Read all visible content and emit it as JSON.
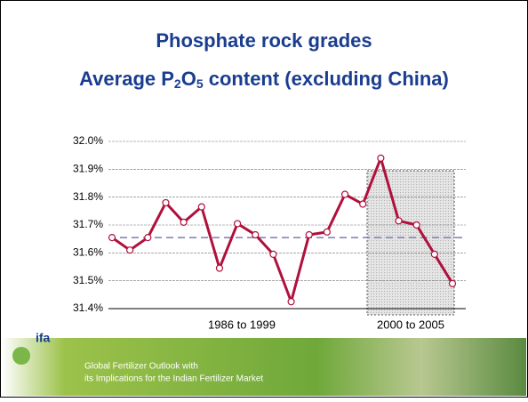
{
  "chart_data": {
    "type": "line",
    "title": "Phosphate rock grades",
    "subtitle_parts": [
      "Average P",
      "2",
      "O",
      "5",
      " content (excluding China)"
    ],
    "categories": [
      null,
      null,
      null,
      null,
      null,
      null,
      null,
      null,
      null,
      null,
      null,
      null,
      null,
      null,
      null,
      null,
      null,
      null,
      null,
      null
    ],
    "series": [
      {
        "name": null,
        "color": "#b0103c",
        "values": [
          31.655,
          31.61,
          31.655,
          31.78,
          31.71,
          31.765,
          31.545,
          31.705,
          31.665,
          31.595,
          31.425,
          31.665,
          31.675,
          31.81,
          31.775,
          31.94,
          31.715,
          31.7,
          31.595,
          31.49
        ]
      }
    ],
    "average": 31.655,
    "average_color": "#7a7ab0",
    "ylim": [
      31.4,
      32.0
    ],
    "yticks": [
      {
        "value": 31.4,
        "label": "31.4%"
      },
      {
        "value": 31.5,
        "label": "31.5%"
      },
      {
        "value": 31.6,
        "label": "31.6%"
      },
      {
        "value": 31.7,
        "label": "31.7%"
      },
      {
        "value": 31.8,
        "label": "31.8%"
      },
      {
        "value": 31.9,
        "label": "31.9%"
      },
      {
        "value": 32.0,
        "label": "32.0%"
      }
    ],
    "grid": true,
    "period_labels": [
      "1986 to 1999",
      "2000 to 2005"
    ]
  },
  "footer": {
    "logo": "ifa",
    "lines": [
      "Global Fertilizer Outlook with",
      "its Implications for the Indian Fertilizer Market"
    ]
  }
}
